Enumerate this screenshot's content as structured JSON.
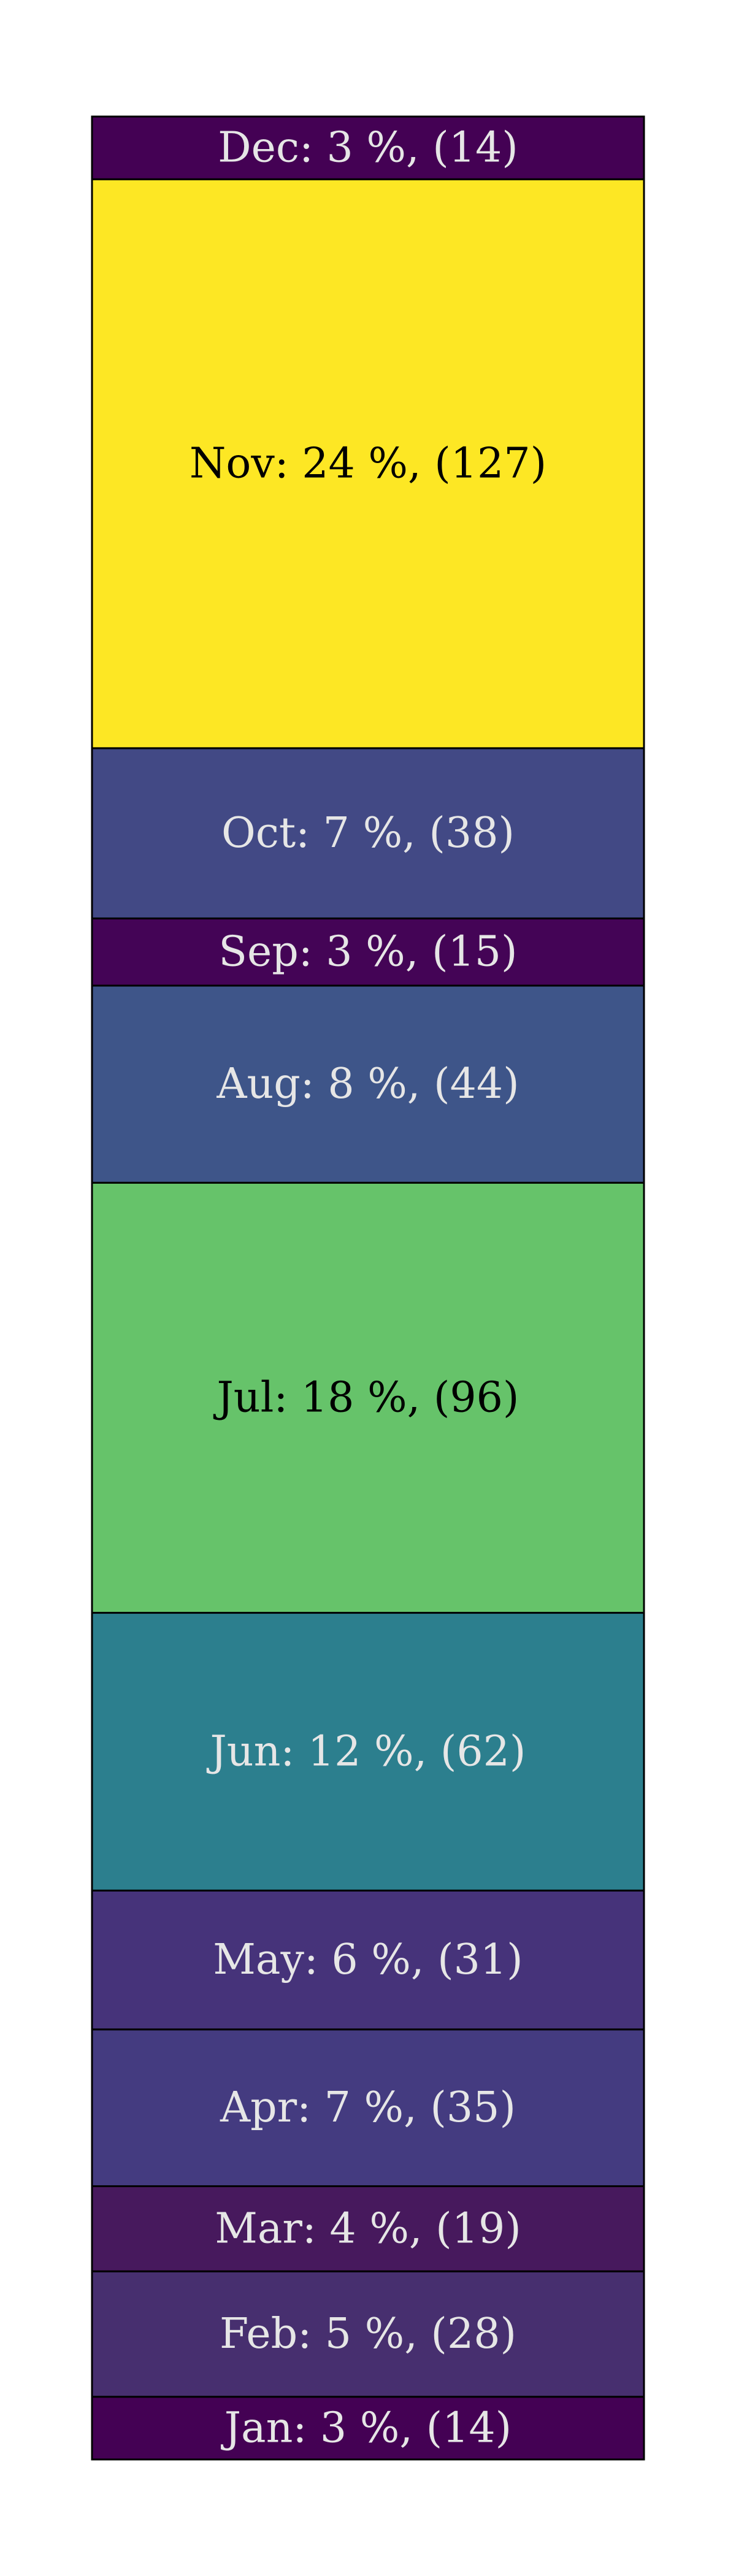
{
  "chart_data": {
    "type": "bar",
    "orientation": "vertical-stack",
    "grid": false,
    "segments": [
      {
        "month": "Jan",
        "percent": "3 %",
        "count": 14,
        "label": "Jan: 3 %, (14)",
        "color": "#440154",
        "text_color": "#e6e6e6"
      },
      {
        "month": "Feb",
        "percent": "5 %",
        "count": 28,
        "label": "Feb: 5 %, (28)",
        "color": "#472f6f",
        "text_color": "#e6e6e6"
      },
      {
        "month": "Mar",
        "percent": "4 %",
        "count": 19,
        "label": "Mar: 4 %, (19)",
        "color": "#47195d",
        "text_color": "#e6e6e6"
      },
      {
        "month": "Apr",
        "percent": "7 %",
        "count": 35,
        "label": "Apr: 7 %, (35)",
        "color": "#443b80",
        "text_color": "#e6e6e6"
      },
      {
        "month": "May",
        "percent": "6 %",
        "count": 31,
        "label": "May: 6 %, (31)",
        "color": "#46337a",
        "text_color": "#e6e6e6"
      },
      {
        "month": "Jun",
        "percent": "12 %",
        "count": 62,
        "label": "Jun: 12 %, (62)",
        "color": "#2c7f8e",
        "text_color": "#e6e6e6"
      },
      {
        "month": "Jul",
        "percent": "18 %",
        "count": 96,
        "label": "Jul: 18 %, (96)",
        "color": "#66c36a",
        "text_color": "#000000"
      },
      {
        "month": "Aug",
        "percent": "8 %",
        "count": 44,
        "label": "Aug: 8 %, (44)",
        "color": "#3e5589",
        "text_color": "#e6e6e6"
      },
      {
        "month": "Sep",
        "percent": "3 %",
        "count": 15,
        "label": "Sep: 3 %, (15)",
        "color": "#440456",
        "text_color": "#e6e6e6"
      },
      {
        "month": "Oct",
        "percent": "7 %",
        "count": 38,
        "label": "Oct: 7 %, (38)",
        "color": "#424985",
        "text_color": "#e6e6e6"
      },
      {
        "month": "Nov",
        "percent": "24 %",
        "count": 127,
        "label": "Nov: 24 %, (127)",
        "color": "#fde724",
        "text_color": "#000000"
      },
      {
        "month": "Dec",
        "percent": "3 %",
        "count": 14,
        "label": "Dec: 3 %, (14)",
        "color": "#440154",
        "text_color": "#e6e6e6"
      }
    ]
  }
}
